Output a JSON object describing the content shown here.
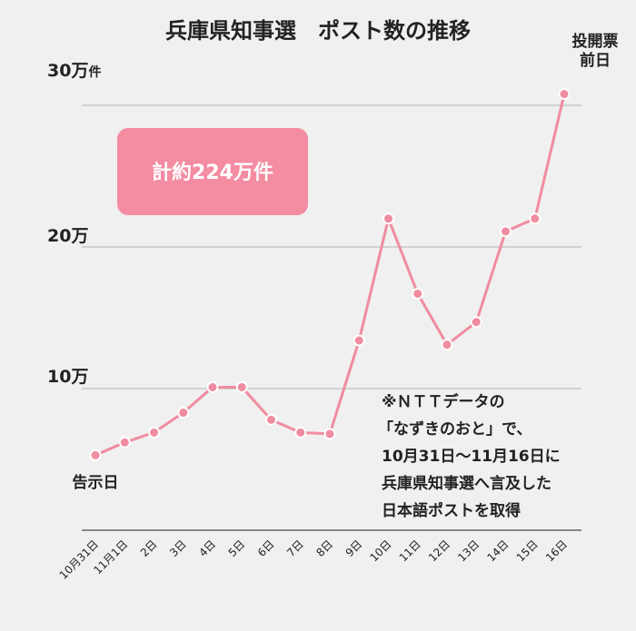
{
  "chart_data": {
    "type": "line",
    "title": "兵庫県知事選　ポスト数の推移",
    "x": [
      "10月31日",
      "11月1日",
      "2日",
      "3日",
      "4日",
      "5日",
      "6日",
      "7日",
      "8日",
      "9日",
      "10日",
      "11日",
      "12日",
      "13日",
      "14日",
      "15日",
      "16日"
    ],
    "series": [
      {
        "values": [
          53000,
          62000,
          69000,
          83000,
          101000,
          101000,
          78000,
          69000,
          68000,
          134000,
          220000,
          167000,
          131000,
          147000,
          211000,
          220000,
          308000
        ]
      }
    ],
    "ylim": [
      0,
      320000
    ],
    "grid": true,
    "y_ticks": [
      {
        "value": 100000,
        "label": "10万"
      },
      {
        "value": 200000,
        "label": "20万"
      },
      {
        "value": 300000,
        "label_main": "30万",
        "label_small": "件"
      }
    ],
    "color": "#f08ca0",
    "total_badge": "計約224万件",
    "annotations": {
      "start": "告示日",
      "end_line1": "投開票",
      "end_line2": "前日"
    },
    "note_lines": [
      "※ＮＴＴデータの",
      "「なずきのおと」で、",
      "10月31日〜11月16日に",
      "兵庫県知事選へ言及した",
      "日本語ポストを取得"
    ]
  }
}
